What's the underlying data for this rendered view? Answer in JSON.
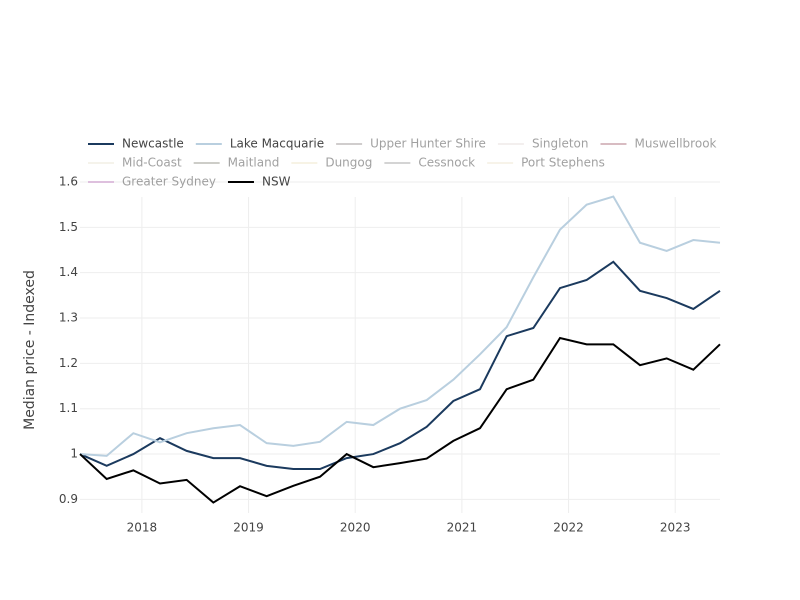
{
  "chart_data": {
    "type": "line",
    "ylabel": "Median price - Indexed",
    "x": [
      2017.42,
      2017.67,
      2017.92,
      2018.17,
      2018.42,
      2018.67,
      2018.92,
      2019.17,
      2019.42,
      2019.67,
      2019.92,
      2020.17,
      2020.42,
      2020.67,
      2020.92,
      2021.17,
      2021.42,
      2021.67,
      2021.92,
      2022.17,
      2022.42,
      2022.67,
      2022.92,
      2023.17,
      2023.42
    ],
    "xlim": [
      2017.42,
      2023.42
    ],
    "xticks": [
      2018,
      2019,
      2020,
      2021,
      2022,
      2023
    ],
    "ylim": [
      0.87,
      1.6
    ],
    "yticks": [
      0.9,
      1,
      1.1,
      1.2,
      1.3,
      1.4,
      1.5,
      1.6
    ],
    "grid": true,
    "series": [
      {
        "name": "Newcastle",
        "color": "#1b3a5e",
        "values": [
          1.0,
          0.974,
          1.0,
          1.035,
          1.007,
          0.991,
          0.991,
          0.974,
          0.967,
          0.967,
          0.991,
          1.0,
          1.024,
          1.06,
          1.117,
          1.143,
          1.26,
          1.278,
          1.366,
          1.384,
          1.424,
          1.36,
          1.344,
          1.32,
          1.36
        ]
      },
      {
        "name": "Lake Macquarie",
        "color": "#b9cfdf",
        "values": [
          1.0,
          0.996,
          1.046,
          1.026,
          1.046,
          1.057,
          1.064,
          1.024,
          1.018,
          1.027,
          1.071,
          1.064,
          1.1,
          1.119,
          1.164,
          1.22,
          1.28,
          1.39,
          1.495,
          1.55,
          1.568,
          1.466,
          1.448,
          1.472,
          1.466
        ]
      },
      {
        "name": "Upper Hunter Shire",
        "color": "#a39c9c",
        "visible": false
      },
      {
        "name": "Singleton",
        "color": "#e9e1de",
        "visible": false
      },
      {
        "name": "Muswellbrook",
        "color": "#b27b87",
        "visible": false
      },
      {
        "name": "Mid-Coast",
        "color": "#ede9d9",
        "visible": false
      },
      {
        "name": "Maitland",
        "color": "#9c9c92",
        "visible": false
      },
      {
        "name": "Dungog",
        "color": "#f0e9cd",
        "visible": false
      },
      {
        "name": "Cessnock",
        "color": "#aaaaaa",
        "visible": false
      },
      {
        "name": "Port Stephens",
        "color": "#f0e9d5",
        "visible": false
      },
      {
        "name": "Greater Sydney",
        "color": "#c68bc6",
        "visible": false
      },
      {
        "name": "NSW",
        "color": "#000000",
        "values": [
          1.0,
          0.945,
          0.964,
          0.935,
          0.943,
          0.893,
          0.929,
          0.907,
          0.93,
          0.95,
          1.0,
          0.971,
          0.98,
          0.99,
          1.029,
          1.057,
          1.143,
          1.164,
          1.256,
          1.242,
          1.242,
          1.196,
          1.211,
          1.186,
          1.242
        ]
      }
    ]
  }
}
